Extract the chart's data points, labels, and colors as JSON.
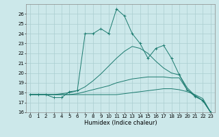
{
  "title": "",
  "xlabel": "Humidex (Indice chaleur)",
  "background_color": "#cce8ea",
  "grid_color": "#aacdd0",
  "line_color": "#1a7a6e",
  "xlim": [
    -0.5,
    23.5
  ],
  "ylim": [
    16,
    27
  ],
  "yticks": [
    16,
    17,
    18,
    19,
    20,
    21,
    22,
    23,
    24,
    25,
    26
  ],
  "xticks": [
    0,
    1,
    2,
    3,
    4,
    5,
    6,
    7,
    8,
    9,
    10,
    11,
    12,
    13,
    14,
    15,
    16,
    17,
    18,
    19,
    20,
    21,
    22,
    23
  ],
  "series": [
    {
      "x": [
        0,
        1,
        2,
        3,
        4,
        5,
        6,
        7,
        8,
        9,
        10,
        11,
        12,
        13,
        14,
        15,
        16,
        17,
        18,
        19,
        20,
        21,
        22,
        23
      ],
      "y": [
        17.8,
        17.8,
        17.8,
        17.8,
        17.8,
        17.8,
        17.8,
        17.8,
        17.8,
        17.8,
        17.8,
        17.8,
        17.9,
        18.0,
        18.1,
        18.2,
        18.3,
        18.4,
        18.4,
        18.3,
        18.1,
        17.8,
        17.4,
        16.0
      ],
      "marker": false
    },
    {
      "x": [
        0,
        1,
        2,
        3,
        4,
        5,
        6,
        7,
        8,
        9,
        10,
        11,
        12,
        13,
        14,
        15,
        16,
        17,
        18,
        19,
        20,
        21,
        22,
        23
      ],
      "y": [
        17.8,
        17.8,
        17.8,
        17.8,
        17.8,
        17.8,
        17.9,
        18.1,
        18.3,
        18.5,
        18.7,
        19.0,
        19.2,
        19.4,
        19.5,
        19.6,
        19.6,
        19.6,
        19.5,
        19.5,
        18.3,
        17.7,
        17.2,
        16.0
      ],
      "marker": false
    },
    {
      "x": [
        0,
        1,
        2,
        3,
        4,
        5,
        6,
        7,
        8,
        9,
        10,
        11,
        12,
        13,
        14,
        15,
        16,
        17,
        18,
        19,
        20,
        21,
        22,
        23
      ],
      "y": [
        17.8,
        17.8,
        17.8,
        17.8,
        17.9,
        18.0,
        18.2,
        18.6,
        19.2,
        19.9,
        20.7,
        21.5,
        22.2,
        22.7,
        22.5,
        22.0,
        21.2,
        20.5,
        20.0,
        19.8,
        18.5,
        17.7,
        17.2,
        16.0
      ],
      "marker": false
    },
    {
      "x": [
        0,
        1,
        2,
        3,
        4,
        5,
        6,
        7,
        8,
        9,
        10,
        11,
        12,
        13,
        14,
        15,
        16,
        17,
        18,
        19,
        20,
        21,
        22,
        23
      ],
      "y": [
        17.8,
        17.8,
        17.8,
        17.5,
        17.5,
        18.1,
        18.2,
        24.0,
        24.0,
        24.5,
        24.0,
        26.5,
        25.8,
        24.0,
        23.0,
        21.5,
        22.5,
        22.8,
        21.5,
        19.8,
        18.3,
        17.6,
        17.2,
        16.0
      ],
      "marker": true
    }
  ]
}
